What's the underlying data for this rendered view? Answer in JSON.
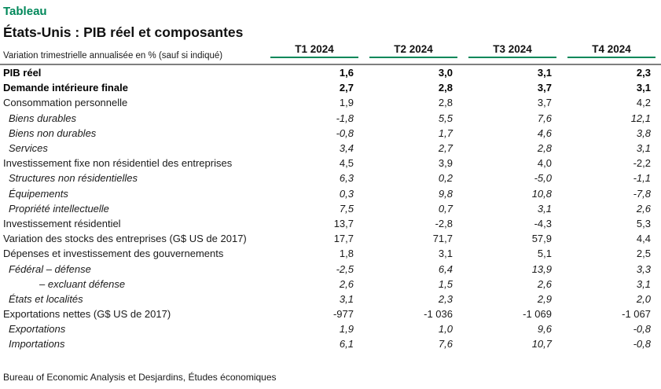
{
  "page": {
    "kicker": "Tableau",
    "title": "États-Unis : PIB réel et composantes",
    "source": "Bureau of Economic Analysis et Desjardins, Études économiques"
  },
  "colors": {
    "accent_green": "#00885A",
    "rule_gray": "#7F7F7F"
  },
  "table": {
    "measure_label": "Variation trimestrielle annualisée en % (sauf si indiqué)",
    "columns": [
      "T1 2024",
      "T2 2024",
      "T3 2024",
      "T4 2024"
    ],
    "rows": [
      {
        "label": "PIB réel",
        "style": "bold",
        "values": [
          "1,6",
          "3,0",
          "3,1",
          "2,3"
        ]
      },
      {
        "label": "Demande intérieure finale",
        "style": "bold",
        "values": [
          "2,7",
          "2,8",
          "3,7",
          "3,1"
        ]
      },
      {
        "label": "Consommation personnelle",
        "style": "regular",
        "values": [
          "1,9",
          "2,8",
          "3,7",
          "4,2"
        ]
      },
      {
        "label": "Biens durables",
        "style": "italic",
        "values": [
          "-1,8",
          "5,5",
          "7,6",
          "12,1"
        ]
      },
      {
        "label": "Biens non durables",
        "style": "italic",
        "values": [
          "-0,8",
          "1,7",
          "4,6",
          "3,8"
        ]
      },
      {
        "label": "Services",
        "style": "italic",
        "values": [
          "3,4",
          "2,7",
          "2,8",
          "3,1"
        ]
      },
      {
        "label": "Investissement fixe non résidentiel des entreprises",
        "style": "regular",
        "values": [
          "4,5",
          "3,9",
          "4,0",
          "-2,2"
        ]
      },
      {
        "label": "Structures non résidentielles",
        "style": "italic",
        "values": [
          "6,3",
          "0,2",
          "-5,0",
          "-1,1"
        ]
      },
      {
        "label": "Équipements",
        "style": "italic",
        "values": [
          "0,3",
          "9,8",
          "10,8",
          "-7,8"
        ]
      },
      {
        "label": "Propriété intellectuelle",
        "style": "italic",
        "values": [
          "7,5",
          "0,7",
          "3,1",
          "2,6"
        ]
      },
      {
        "label": "Investissement résidentiel",
        "style": "regular",
        "values": [
          "13,7",
          "-2,8",
          "-4,3",
          "5,3"
        ]
      },
      {
        "label": "Variation des stocks des entreprises (G$ US de 2017)",
        "style": "regular",
        "values": [
          "17,7",
          "71,7",
          "57,9",
          "4,4"
        ]
      },
      {
        "label": "Dépenses et investissement des gouvernements",
        "style": "regular",
        "values": [
          "1,8",
          "3,1",
          "5,1",
          "2,5"
        ]
      },
      {
        "label": "Fédéral – défense",
        "style": "italic",
        "values": [
          "-2,5",
          "6,4",
          "13,9",
          "3,3"
        ]
      },
      {
        "label": "– excluant défense",
        "style": "italic2",
        "values": [
          "2,6",
          "1,5",
          "2,6",
          "3,1"
        ]
      },
      {
        "label": "États et localités",
        "style": "italic",
        "values": [
          "3,1",
          "2,3",
          "2,9",
          "2,0"
        ]
      },
      {
        "label": "Exportations nettes (G$ US de 2017)",
        "style": "regular",
        "values": [
          "-977",
          "-1 036",
          "-1 069",
          "-1 067"
        ]
      },
      {
        "label": "Exportations",
        "style": "italic",
        "values": [
          "1,9",
          "1,0",
          "9,6",
          "-0,8"
        ]
      },
      {
        "label": "Importations",
        "style": "italic",
        "values": [
          "6,1",
          "7,6",
          "10,7",
          "-0,8"
        ]
      }
    ]
  },
  "chart_data": {
    "type": "table",
    "title": "États-Unis : PIB réel et composantes",
    "unit": "Variation trimestrielle annualisée en % (sauf si indiqué)",
    "categories": [
      "T1 2024",
      "T2 2024",
      "T3 2024",
      "T4 2024"
    ],
    "series": [
      {
        "name": "PIB réel",
        "values": [
          1.6,
          3.0,
          3.1,
          2.3
        ]
      },
      {
        "name": "Demande intérieure finale",
        "values": [
          2.7,
          2.8,
          3.7,
          3.1
        ]
      },
      {
        "name": "Consommation personnelle",
        "values": [
          1.9,
          2.8,
          3.7,
          4.2
        ]
      },
      {
        "name": "Biens durables",
        "values": [
          -1.8,
          5.5,
          7.6,
          12.1
        ]
      },
      {
        "name": "Biens non durables",
        "values": [
          -0.8,
          1.7,
          4.6,
          3.8
        ]
      },
      {
        "name": "Services",
        "values": [
          3.4,
          2.7,
          2.8,
          3.1
        ]
      },
      {
        "name": "Investissement fixe non résidentiel des entreprises",
        "values": [
          4.5,
          3.9,
          4.0,
          -2.2
        ]
      },
      {
        "name": "Structures non résidentielles",
        "values": [
          6.3,
          0.2,
          -5.0,
          -1.1
        ]
      },
      {
        "name": "Équipements",
        "values": [
          0.3,
          9.8,
          10.8,
          -7.8
        ]
      },
      {
        "name": "Propriété intellectuelle",
        "values": [
          7.5,
          0.7,
          3.1,
          2.6
        ]
      },
      {
        "name": "Investissement résidentiel",
        "values": [
          13.7,
          -2.8,
          -4.3,
          5.3
        ]
      },
      {
        "name": "Variation des stocks des entreprises (G$ US de 2017)",
        "values": [
          17.7,
          71.7,
          57.9,
          4.4
        ]
      },
      {
        "name": "Dépenses et investissement des gouvernements",
        "values": [
          1.8,
          3.1,
          5.1,
          2.5
        ]
      },
      {
        "name": "Fédéral – défense",
        "values": [
          -2.5,
          6.4,
          13.9,
          3.3
        ]
      },
      {
        "name": "Fédéral – excluant défense",
        "values": [
          2.6,
          1.5,
          2.6,
          3.1
        ]
      },
      {
        "name": "États et localités",
        "values": [
          3.1,
          2.3,
          2.9,
          2.0
        ]
      },
      {
        "name": "Exportations nettes (G$ US de 2017)",
        "values": [
          -977,
          -1036,
          -1069,
          -1067
        ]
      },
      {
        "name": "Exportations",
        "values": [
          1.9,
          1.0,
          9.6,
          -0.8
        ]
      },
      {
        "name": "Importations",
        "values": [
          6.1,
          7.6,
          10.7,
          -0.8
        ]
      }
    ]
  }
}
